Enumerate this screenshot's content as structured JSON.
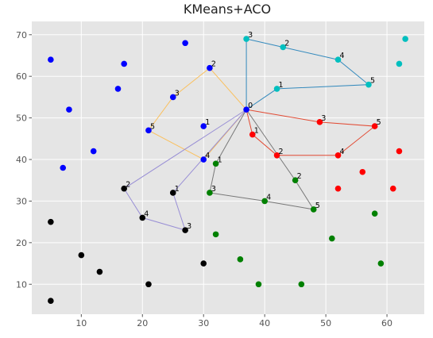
{
  "chart_data": {
    "type": "scatter",
    "title": "KMeans+ACO",
    "xlabel": "",
    "ylabel": "",
    "xlim": [
      1.9,
      66.1
    ],
    "ylim": [
      2.8,
      73.2
    ],
    "xticks": [
      10,
      20,
      30,
      40,
      50,
      60
    ],
    "yticks": [
      10,
      20,
      30,
      40,
      50,
      60,
      70
    ],
    "grid": true,
    "background": "#e5e5e5",
    "depot": {
      "x": 37,
      "y": 52,
      "label": "0"
    },
    "clusters": [
      {
        "color": "#0000ff",
        "route_color": "#fac05e",
        "points": [
          [
            5,
            64
          ],
          [
            17,
            63
          ],
          [
            27,
            68
          ],
          [
            8,
            52
          ],
          [
            16,
            57
          ],
          [
            12,
            42
          ],
          [
            7,
            38
          ]
        ],
        "route": [
          [
            37,
            52
          ],
          [
            31,
            62
          ],
          [
            25,
            55
          ],
          [
            21,
            47
          ],
          [
            30,
            40
          ],
          [
            37,
            52
          ]
        ],
        "route_labels": [
          "2",
          "3",
          "5",
          "4"
        ],
        "extra_labels": [
          {
            "x": 30,
            "y": 48,
            "label": "1"
          }
        ],
        "extra_points": [
          [
            30,
            48
          ]
        ]
      },
      {
        "color": "#00bfbf",
        "route_color": "#348abd",
        "points": [
          [
            63,
            69
          ],
          [
            62,
            63
          ]
        ],
        "route": [
          [
            37,
            52
          ],
          [
            37,
            69
          ],
          [
            43,
            67
          ],
          [
            52,
            64
          ],
          [
            57,
            58
          ],
          [
            42,
            57
          ],
          [
            37,
            52
          ]
        ],
        "route_labels": [
          "3",
          "2",
          "4",
          "5",
          "1"
        ],
        "extra_labels": [],
        "extra_points": []
      },
      {
        "color": "#ff0000",
        "route_color": "#e24a33",
        "points": [
          [
            62,
            42
          ],
          [
            56,
            37
          ],
          [
            52,
            33
          ],
          [
            61,
            33
          ]
        ],
        "route": [
          [
            37,
            52
          ],
          [
            49,
            49
          ],
          [
            58,
            48
          ],
          [
            52,
            41
          ],
          [
            42,
            41
          ],
          [
            38,
            46
          ],
          [
            37,
            52
          ]
        ],
        "route_labels": [
          "3",
          "5",
          "4",
          "2",
          "1"
        ],
        "extra_labels": [],
        "extra_points": []
      },
      {
        "color": "#008000",
        "route_color": "#777777",
        "points": [
          [
            58,
            27
          ],
          [
            51,
            21
          ],
          [
            32,
            22
          ],
          [
            36,
            16
          ],
          [
            59,
            15
          ],
          [
            39,
            10
          ],
          [
            46,
            10
          ]
        ],
        "route": [
          [
            37,
            52
          ],
          [
            32,
            39
          ],
          [
            31,
            32
          ],
          [
            40,
            30
          ],
          [
            48,
            28
          ],
          [
            45,
            35
          ],
          [
            37,
            52
          ]
        ],
        "route_labels": [
          "1",
          "3",
          "4",
          "5",
          "2"
        ],
        "extra_labels": [],
        "extra_points": []
      },
      {
        "color": "#000000",
        "route_color": "#988ed5",
        "points": [
          [
            5,
            25
          ],
          [
            10,
            17
          ],
          [
            13,
            13
          ],
          [
            21,
            10
          ],
          [
            30,
            15
          ],
          [
            5,
            6
          ]
        ],
        "route": [
          [
            37,
            52
          ],
          [
            17,
            33
          ],
          [
            20,
            26
          ],
          [
            27,
            23
          ],
          [
            25,
            32
          ],
          [
            37,
            52
          ]
        ],
        "route_labels": [
          "2",
          "4",
          "3",
          "1"
        ],
        "extra_labels": [],
        "extra_points": []
      }
    ]
  }
}
